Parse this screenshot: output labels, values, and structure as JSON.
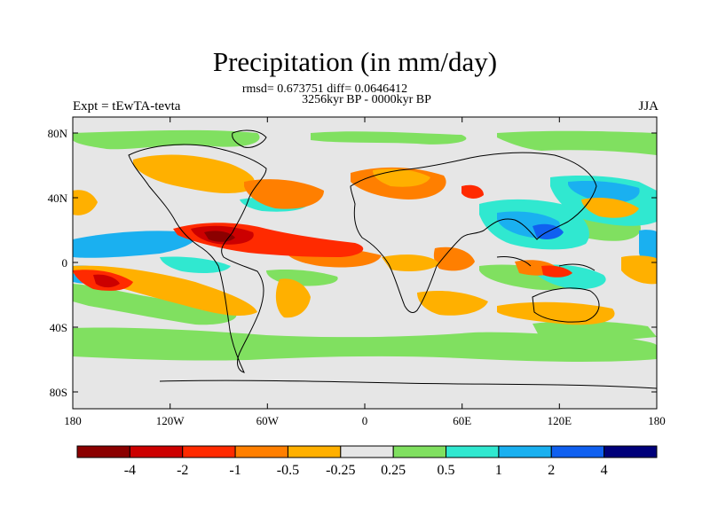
{
  "title": "Precipitation (in mm/day)",
  "stats_line": "rmsd= 0.673751 diff= 0.0646412",
  "period_line": "3256kyr BP - 0000kyr BP",
  "experiment_label": "Expt = tEwTA-tevta",
  "season_label": "JJA",
  "map": {
    "lat_ticks": [
      "80N",
      "40N",
      "0",
      "40S",
      "80S"
    ],
    "lon_ticks": [
      "180",
      "120W",
      "60W",
      "0",
      "60E",
      "120E",
      "180"
    ],
    "background_color": "#e6e6e6"
  },
  "colorbar": {
    "labels": [
      "-4",
      "-2",
      "-1",
      "-0.5",
      "-0.25",
      "0.25",
      "0.5",
      "1",
      "2",
      "4"
    ],
    "colors": [
      "#8b0000",
      "#cc0000",
      "#ff2a00",
      "#ff7f00",
      "#ffb000",
      "#e6e6e6",
      "#80e060",
      "#30e8d0",
      "#1ab0f0",
      "#1060f0",
      "#00007a"
    ]
  }
}
